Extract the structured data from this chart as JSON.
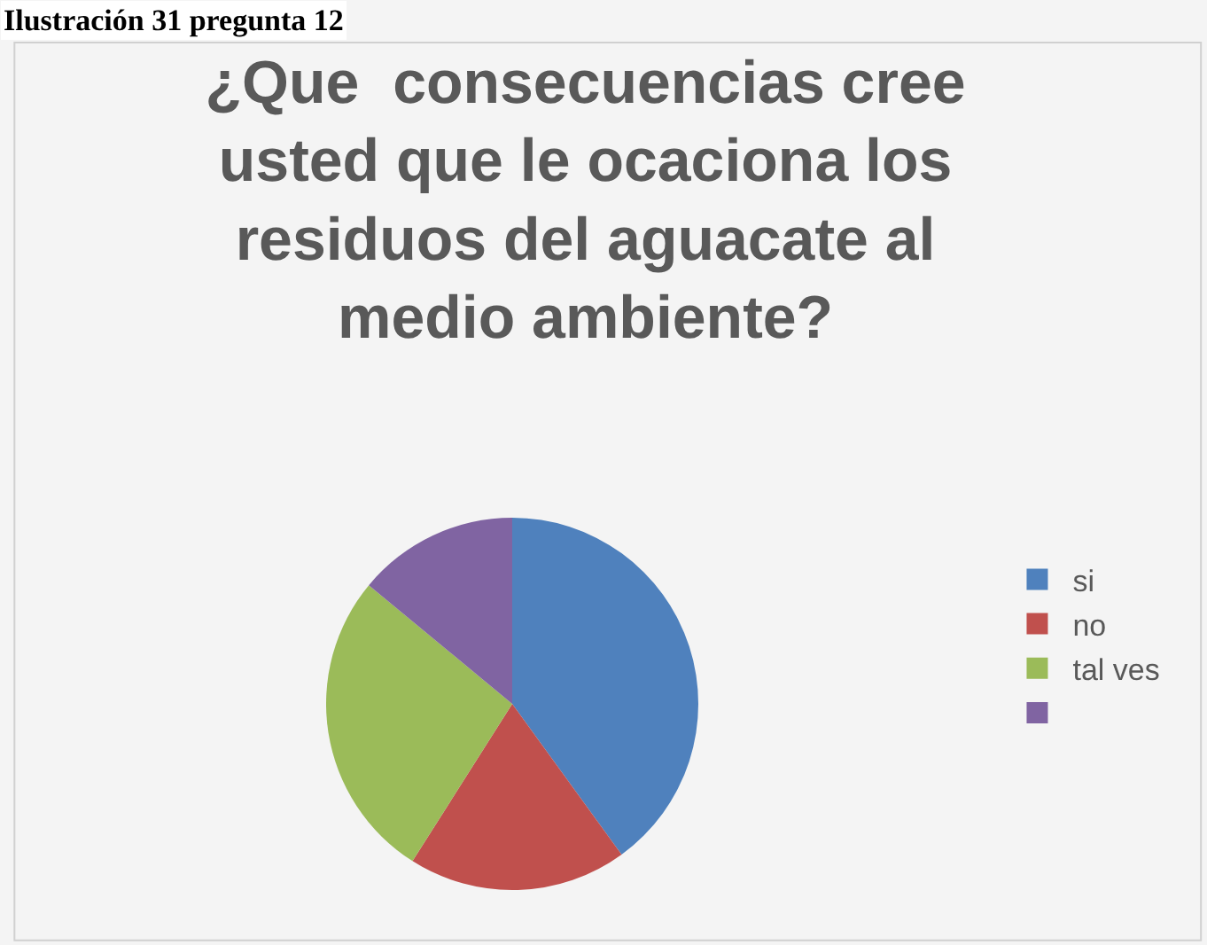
{
  "chart_data": {
    "type": "pie",
    "title": "¿Que  consecuencias cree usted que le ocaciona los residuos del aguacate al medio ambiente?",
    "annotations": [
      "Ilustración 31 pregunta 12"
    ],
    "categories": [
      "si",
      "no",
      "tal ves",
      null
    ],
    "values": [
      40,
      19,
      27,
      14
    ],
    "colors": [
      "#4f81bd",
      "#c0504d",
      "#9bbb59",
      "#8064a2"
    ],
    "legend": "right"
  }
}
